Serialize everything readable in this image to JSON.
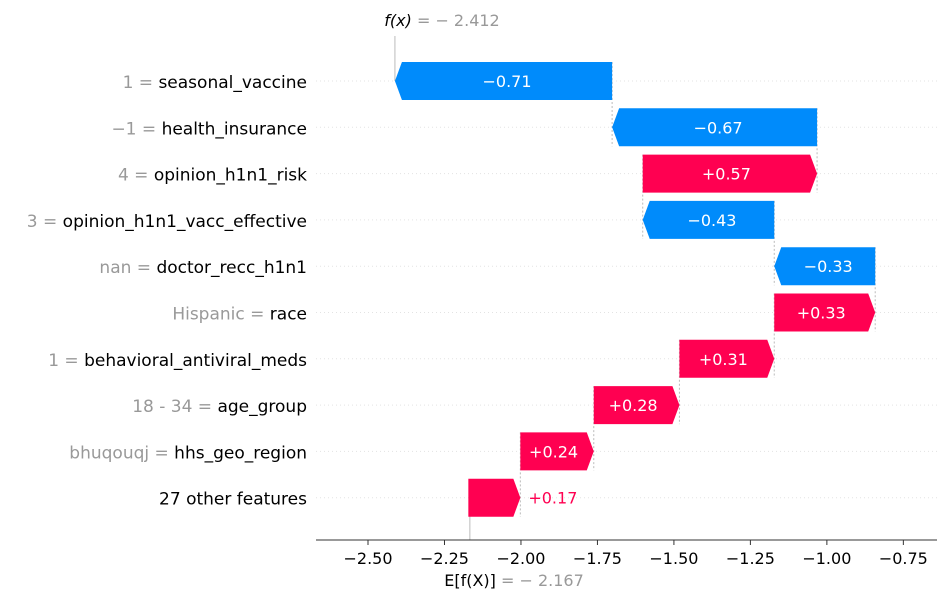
{
  "chart_data": {
    "type": "waterfall",
    "fx_label": "f(x)",
    "fx_value_text": " = − 2.412",
    "ex_label": "E[f(X)]",
    "ex_value_text": " = − 2.167",
    "fx_value": -2.412,
    "base_value": -2.167,
    "xlim": [
      -2.67,
      -0.64
    ],
    "xticks": [
      {
        "value": -2.5,
        "label": "−2.50"
      },
      {
        "value": -2.25,
        "label": "−2.25"
      },
      {
        "value": -2.0,
        "label": "−2.00"
      },
      {
        "value": -1.75,
        "label": "−1.75"
      },
      {
        "value": -1.5,
        "label": "−1.50"
      },
      {
        "value": -1.25,
        "label": "−1.25"
      },
      {
        "value": -1.0,
        "label": "−1.00"
      },
      {
        "value": -0.75,
        "label": "−0.75"
      }
    ],
    "colors": {
      "positive": "#ff0051",
      "negative": "#008bfb",
      "muted": "#999999"
    },
    "features": [
      {
        "value": "1",
        "name": "seasonal_vaccine",
        "contribution": -0.71,
        "start": -1.702,
        "label": "−0.71"
      },
      {
        "value": "−1",
        "name": "health_insurance",
        "contribution": -0.67,
        "start": -1.032,
        "label": "−0.67"
      },
      {
        "value": "4",
        "name": "opinion_h1n1_risk",
        "contribution": 0.57,
        "start": -1.602,
        "label": "+0.57"
      },
      {
        "value": "3",
        "name": "opinion_h1n1_vacc_effective",
        "contribution": -0.43,
        "start": -1.172,
        "label": "−0.43"
      },
      {
        "value": "nan",
        "name": "doctor_recc_h1n1",
        "contribution": -0.33,
        "start": -0.842,
        "label": "−0.33"
      },
      {
        "value": "Hispanic",
        "name": "race",
        "contribution": 0.33,
        "start": -1.172,
        "label": "+0.33"
      },
      {
        "value": "1",
        "name": "behavioral_antiviral_meds",
        "contribution": 0.31,
        "start": -1.482,
        "label": "+0.31"
      },
      {
        "value": "18 - 34 ",
        "name": "age_group",
        "contribution": 0.28,
        "start": -1.762,
        "label": "+0.28"
      },
      {
        "value": "bhuqouqj",
        "name": "hhs_geo_region",
        "contribution": 0.24,
        "start": -2.002,
        "label": "+0.24"
      },
      {
        "value": null,
        "name": "27 other features",
        "contribution": 0.17,
        "start": -2.172,
        "label": "+0.17"
      }
    ]
  }
}
